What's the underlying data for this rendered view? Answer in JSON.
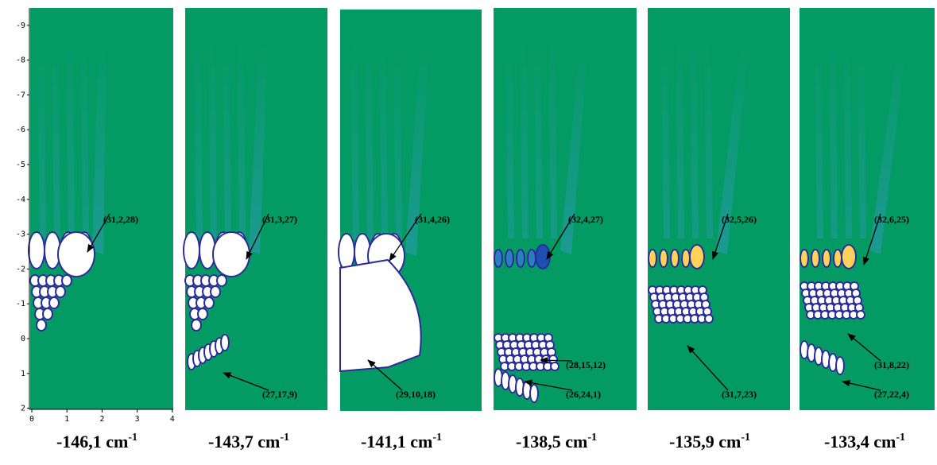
{
  "axes": {
    "yticks": [
      "-9",
      "-8",
      "-7",
      "-6",
      "-5",
      "-4",
      "-3",
      "-2",
      "-1",
      "0",
      "1",
      "2"
    ],
    "xticks": [
      "0",
      "1",
      "2",
      "3",
      "4"
    ]
  },
  "panels": [
    {
      "caption": "-146,1 cm",
      "caption_sup": "-1",
      "labels": [
        "(31,2,28)"
      ]
    },
    {
      "caption": "-143,7 cm",
      "caption_sup": "-1",
      "labels": [
        "(31,3,27)",
        "(27,17,9)"
      ]
    },
    {
      "caption": "-141,1 cm",
      "caption_sup": "-1",
      "labels": [
        "(31,4,26)",
        "(29,10,18)"
      ]
    },
    {
      "caption": "-138,5 cm",
      "caption_sup": "-1",
      "labels": [
        "(32,4,27)",
        "(28,15,12)",
        "(26,24,1)"
      ]
    },
    {
      "caption": "-135,9 cm",
      "caption_sup": "-1",
      "labels": [
        "(32,5,26)",
        "(31,7,23)"
      ]
    },
    {
      "caption": "-133,4 cm",
      "caption_sup": "-1",
      "labels": [
        "(32,6,25)",
        "(31,8,22)",
        "(27,22,4)"
      ]
    }
  ]
}
